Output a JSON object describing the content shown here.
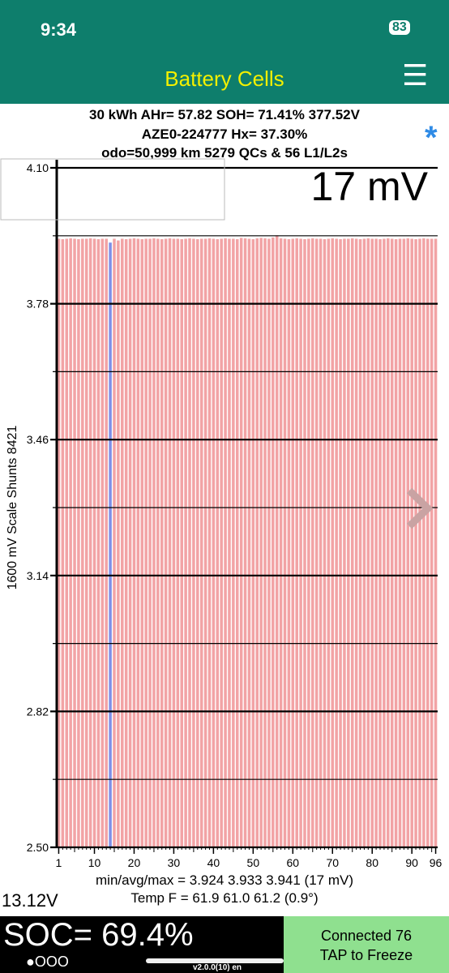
{
  "status_bar": {
    "time": "9:34",
    "battery": "83"
  },
  "header": {
    "title": "Battery Cells",
    "menu": "☰"
  },
  "info": {
    "line1": "30 kWh  AHr= 57.82  SOH= 71.41%   377.52V",
    "line2": "AZE0-224777   Hx= 37.30%",
    "line3": "odo=50,999 km 5279 QCs & 56 L1/L2s",
    "star": "*"
  },
  "chart_data": {
    "type": "bar",
    "delta_label": "17 mV",
    "ylabel": "1600 mV Scale   Shunts 8421",
    "x": [
      1,
      2,
      3,
      4,
      5,
      6,
      7,
      8,
      9,
      10,
      11,
      12,
      13,
      14,
      15,
      16,
      17,
      18,
      19,
      20,
      21,
      22,
      23,
      24,
      25,
      26,
      27,
      28,
      29,
      30,
      31,
      32,
      33,
      34,
      35,
      36,
      37,
      38,
      39,
      40,
      41,
      42,
      43,
      44,
      45,
      46,
      47,
      48,
      49,
      50,
      51,
      52,
      53,
      54,
      55,
      56,
      57,
      58,
      59,
      60,
      61,
      62,
      63,
      64,
      65,
      66,
      67,
      68,
      69,
      70,
      71,
      72,
      73,
      74,
      75,
      76,
      77,
      78,
      79,
      80,
      81,
      82,
      83,
      84,
      85,
      86,
      87,
      88,
      89,
      90,
      91,
      92,
      93,
      94,
      95,
      96
    ],
    "values": [
      3.933,
      3.932,
      3.933,
      3.934,
      3.933,
      3.932,
      3.933,
      3.933,
      3.934,
      3.933,
      3.932,
      3.933,
      3.933,
      3.924,
      3.933,
      3.929,
      3.933,
      3.932,
      3.933,
      3.934,
      3.933,
      3.932,
      3.933,
      3.933,
      3.934,
      3.933,
      3.932,
      3.933,
      3.934,
      3.933,
      3.933,
      3.932,
      3.933,
      3.934,
      3.933,
      3.932,
      3.933,
      3.933,
      3.934,
      3.933,
      3.932,
      3.933,
      3.934,
      3.933,
      3.933,
      3.932,
      3.935,
      3.934,
      3.933,
      3.932,
      3.934,
      3.935,
      3.934,
      3.933,
      3.936,
      3.941,
      3.934,
      3.933,
      3.932,
      3.933,
      3.934,
      3.933,
      3.932,
      3.933,
      3.934,
      3.933,
      3.933,
      3.932,
      3.933,
      3.934,
      3.933,
      3.932,
      3.933,
      3.933,
      3.934,
      3.933,
      3.932,
      3.933,
      3.934,
      3.933,
      3.933,
      3.932,
      3.933,
      3.934,
      3.933,
      3.932,
      3.933,
      3.933,
      3.934,
      3.933,
      3.932,
      3.933,
      3.934,
      3.933,
      3.933,
      3.933
    ],
    "color": "#f2a3a5",
    "min_color": "#7f8fe6",
    "xlim": [
      0.5,
      96.5
    ],
    "xticks": [
      1,
      10,
      20,
      30,
      40,
      50,
      60,
      70,
      80,
      90,
      96
    ],
    "ylim": [
      2.5,
      4.1
    ],
    "yticks": [
      {
        "value": 2.5,
        "label": "2.50"
      },
      2.82,
      3.14,
      3.46,
      3.78,
      {
        "value": 4.1,
        "label": "4.10"
      }
    ],
    "minor_yticks": [
      2.66,
      2.98,
      3.3,
      3.62,
      3.94
    ]
  },
  "stats": {
    "voltage_line": "min/avg/max = 3.924 3.933 3.941  (17 mV)",
    "temp_line": "Temp F = 61.9  61.0  61.2  (0.9°)"
  },
  "footer": {
    "aux": "13.12V",
    "soc": "SOC= 69.4%",
    "dots": "●OOO",
    "connected": "Connected 76",
    "tap": "TAP to Freeze",
    "version": "v2.0.0(10) en"
  }
}
